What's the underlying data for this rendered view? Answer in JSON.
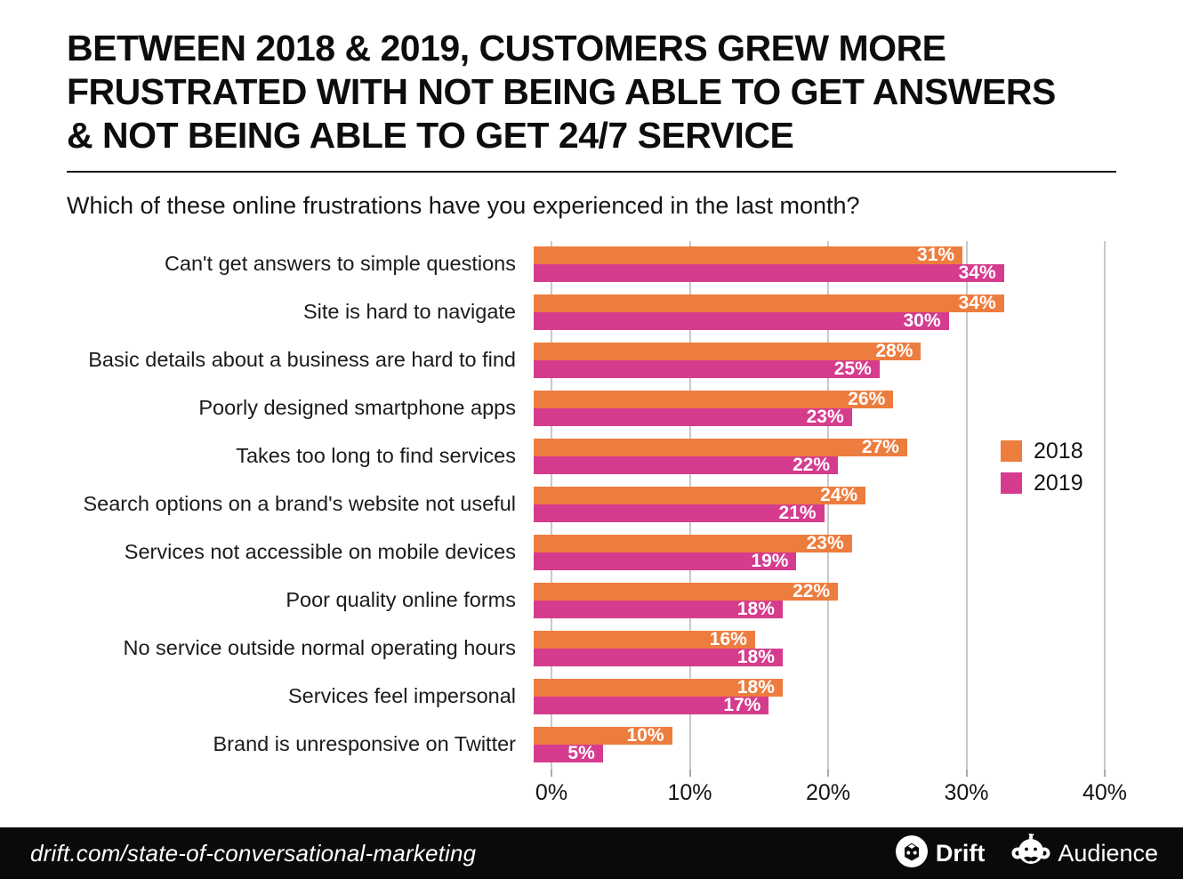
{
  "title": {
    "lines": [
      "BETWEEN 2018 & 2019, CUSTOMERS GREW MORE",
      "FRUSTRATED WITH NOT BEING ABLE TO GET ANSWERS",
      "& NOT BEING ABLE TO GET 24/7 SERVICE"
    ]
  },
  "subtitle": "Which of these online frustrations have you experienced in the last month?",
  "colors": {
    "series_2018": "#ED7D3E",
    "series_2019": "#D53C8E",
    "gridline": "#C9C9C9",
    "footer_bg": "#0A0A0A",
    "text": "#111111",
    "bar_value_text": "#FFFFFF"
  },
  "chart_data": {
    "type": "bar",
    "orientation": "horizontal",
    "categories": [
      "Can't get answers to simple questions",
      "Site is hard to navigate",
      "Basic details about a business are hard to find",
      "Poorly designed smartphone apps",
      "Takes too long to find services",
      "Search options on a brand's website not useful",
      "Services not accessible on mobile devices",
      "Poor quality online forms",
      "No service outside normal operating hours",
      "Services feel impersonal",
      "Brand is unresponsive on Twitter"
    ],
    "series": [
      {
        "name": "2018",
        "color": "#ED7D3E",
        "values": [
          31,
          34,
          28,
          26,
          27,
          24,
          23,
          22,
          16,
          18,
          10
        ]
      },
      {
        "name": "2019",
        "color": "#D53C8E",
        "values": [
          34,
          30,
          25,
          23,
          22,
          21,
          19,
          18,
          18,
          17,
          5
        ]
      }
    ],
    "value_suffix": "%",
    "xlim": [
      0,
      40
    ],
    "x_ticks": [
      "0%",
      "10%",
      "20%",
      "30%",
      "40%"
    ],
    "x_tick_values": [
      0,
      10,
      20,
      30,
      40
    ],
    "grid": true,
    "legend_position": "right-middle"
  },
  "footer": {
    "source_text": "drift.com/state-of-conversational-marketing",
    "logo_drift": "Drift",
    "logo_audience": "Audience"
  }
}
